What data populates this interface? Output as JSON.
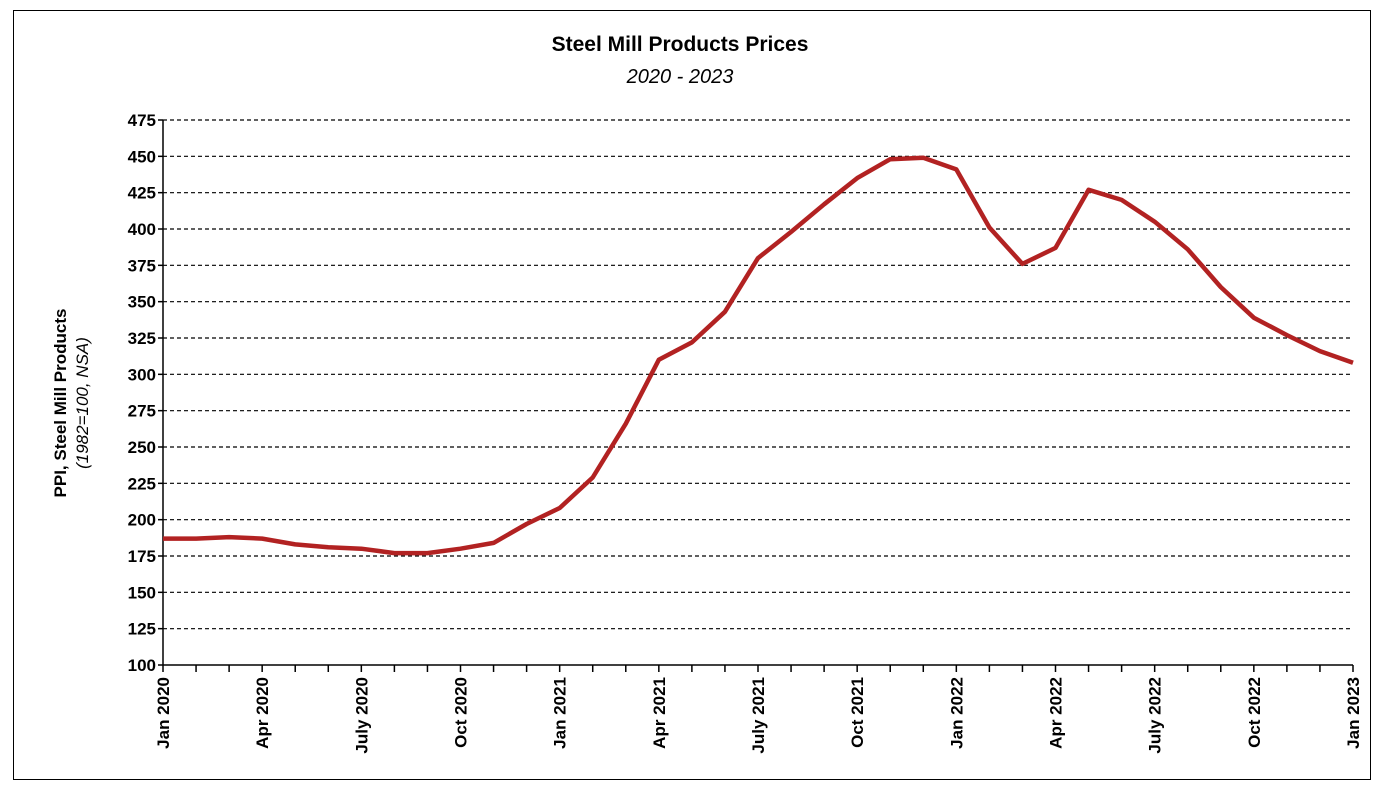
{
  "chart_data": {
    "type": "line",
    "title": "Steel Mill Products Prices",
    "subtitle": "2020 - 2023",
    "ylabel": "PPI, Steel Mill Products",
    "ylabel_sub": "(1982=100, NSA)",
    "xlabel": "",
    "ylim": [
      100,
      475
    ],
    "yticks": [
      100,
      125,
      150,
      175,
      200,
      225,
      250,
      275,
      300,
      325,
      350,
      375,
      400,
      425,
      450,
      475
    ],
    "grid": true,
    "line_color": "#B22222",
    "x_tick_labels": [
      "Jan 2020",
      "Apr 2020",
      "July 2020",
      "Oct 2020",
      "Jan 2021",
      "Apr 2021",
      "July 2021",
      "Oct 2021",
      "Jan 2022",
      "Apr 2022",
      "July 2022",
      "Oct 2022",
      "Jan 2023"
    ],
    "x": [
      "2020-01",
      "2020-02",
      "2020-03",
      "2020-04",
      "2020-05",
      "2020-06",
      "2020-07",
      "2020-08",
      "2020-09",
      "2020-10",
      "2020-11",
      "2020-12",
      "2021-01",
      "2021-02",
      "2021-03",
      "2021-04",
      "2021-05",
      "2021-06",
      "2021-07",
      "2021-08",
      "2021-09",
      "2021-10",
      "2021-11",
      "2021-12",
      "2022-01",
      "2022-02",
      "2022-03",
      "2022-04",
      "2022-05",
      "2022-06",
      "2022-07",
      "2022-08",
      "2022-09",
      "2022-10",
      "2022-11",
      "2022-12",
      "2023-01"
    ],
    "series": [
      {
        "values": [
          187,
          187,
          188,
          187,
          183,
          181,
          180,
          177,
          177,
          180,
          184,
          197,
          208,
          229,
          266,
          310,
          322,
          343,
          380,
          398,
          417,
          435,
          448,
          449,
          441,
          401,
          376,
          387,
          427,
          420,
          405,
          386,
          360,
          339,
          327,
          316,
          308
        ]
      }
    ]
  }
}
